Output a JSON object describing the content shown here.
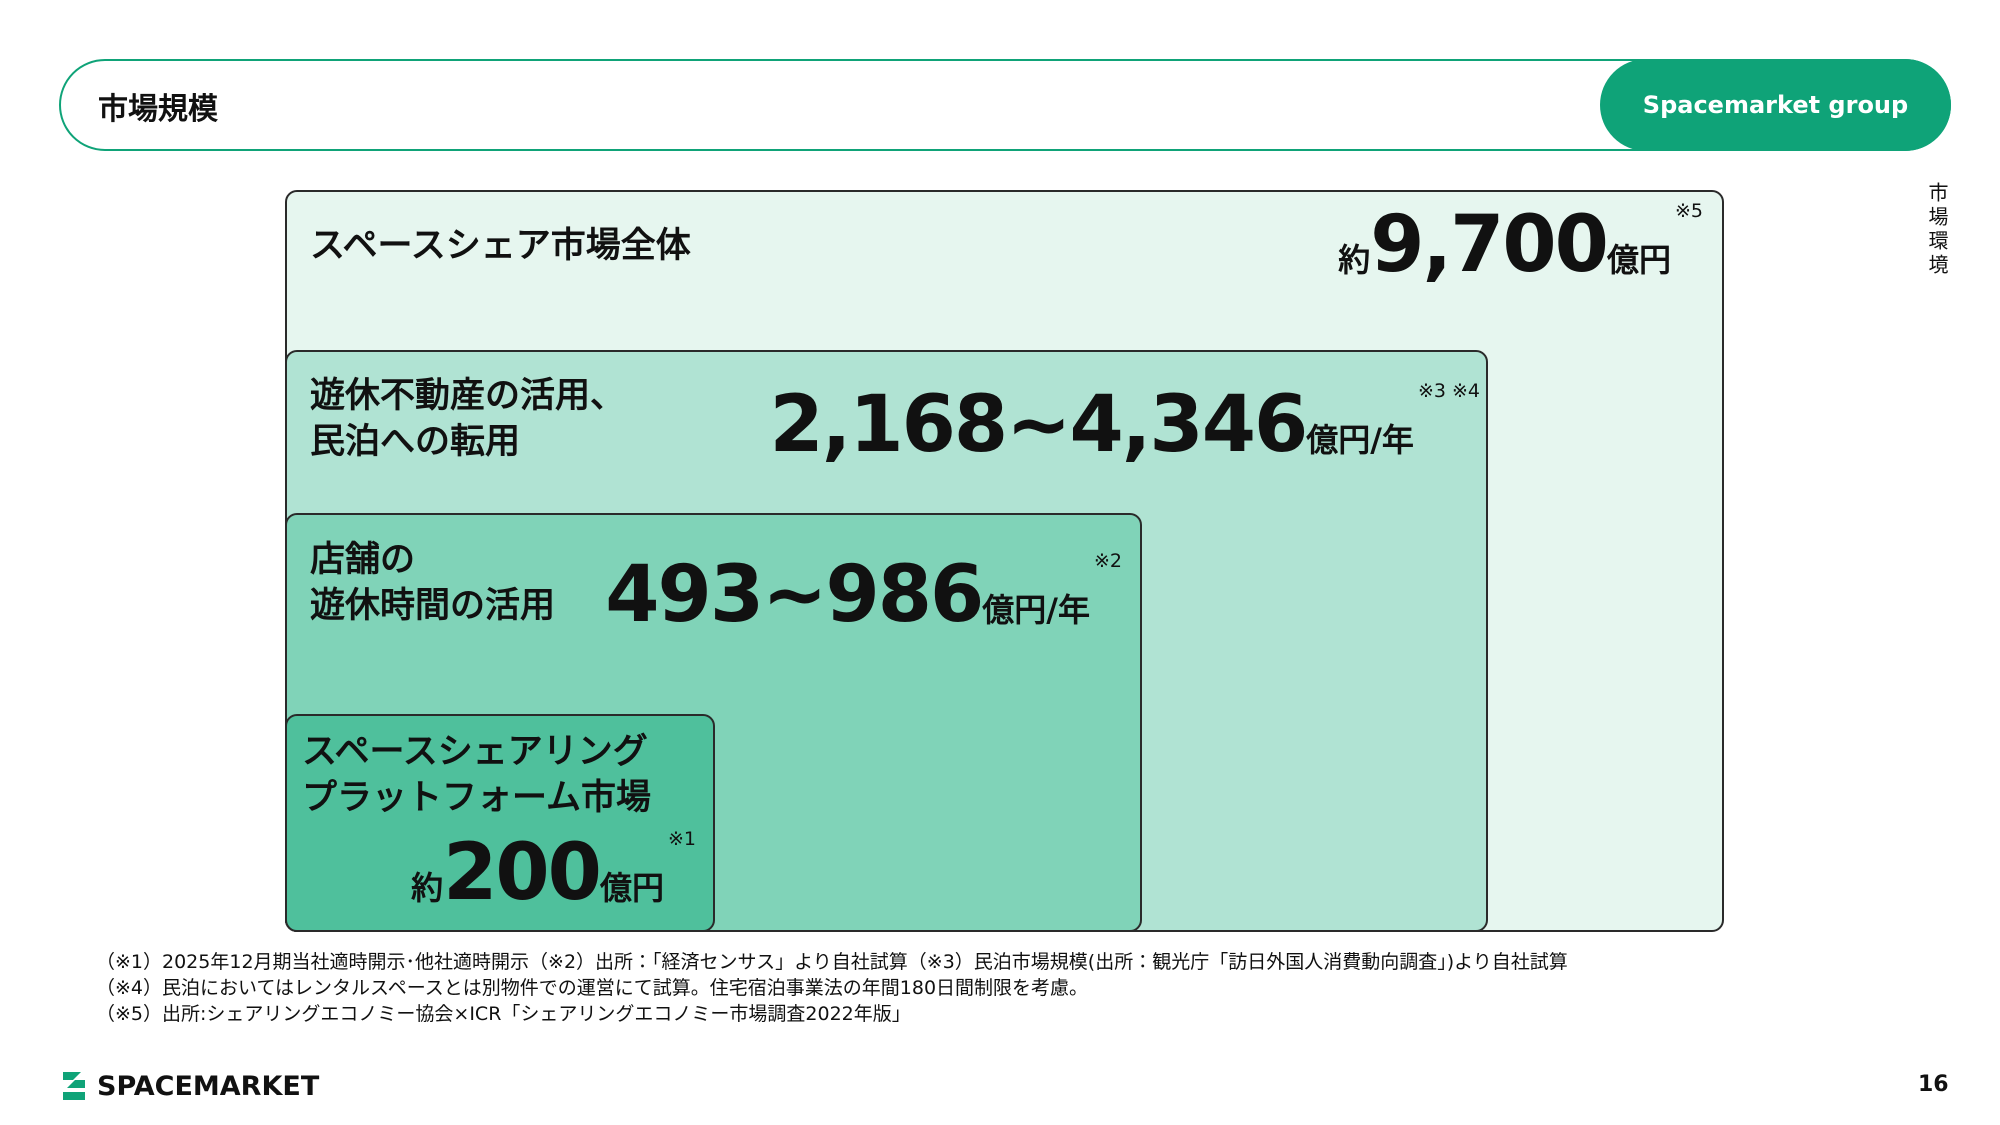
{
  "header": {
    "title": "市場規模",
    "badge": "Spacemarket group"
  },
  "side_label": "市場環境",
  "boxes": [
    {
      "lines": [
        "スペースシェア市場全体"
      ],
      "prefix": "約",
      "amount": "9,700",
      "unit": "億円",
      "note": "※5"
    },
    {
      "lines": [
        "遊休不動産の活用、",
        "民泊への転用"
      ],
      "amount": "2,168~4,346",
      "unit": "億円/年",
      "note": "※3 ※4"
    },
    {
      "lines": [
        "店舗の",
        "遊休時間の活用"
      ],
      "amount": "493~986",
      "unit": "億円/年",
      "note": "※2"
    },
    {
      "lines": [
        "スペースシェアリング",
        "プラットフォーム市場"
      ],
      "prefix": "約",
      "amount": "200",
      "unit": "億円",
      "note": "※1"
    }
  ],
  "footnotes": [
    "（※1）2025年12月期当社適時開示･他社適時開示（※2）出所：「経済センサス」より自社試算（※3）民泊市場規模(出所：観光庁「訪日外国人消費動向調査」)より自社試算",
    "（※4）民泊においてはレンタルスペースとは別物件での運営にて試算。住宅宿泊事業法の年間180日間制限を考慮。",
    "（※5）出所:シェアリングエコノミー協会×ICR「シェアリングエコノミー市場調査2022年版」"
  ],
  "footer": {
    "logo": "SPACEMARKET",
    "page": "16"
  }
}
